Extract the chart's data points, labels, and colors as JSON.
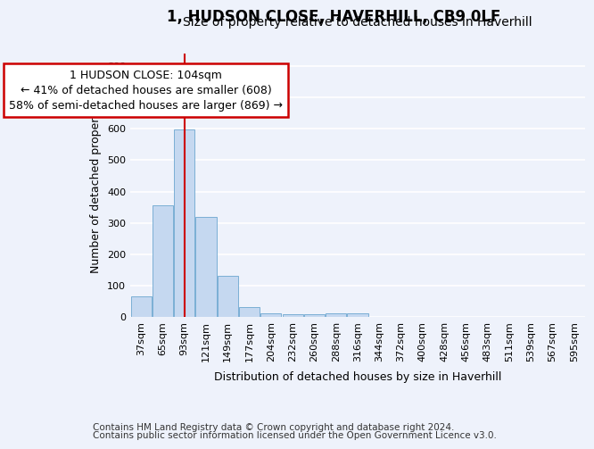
{
  "title": "1, HUDSON CLOSE, HAVERHILL, CB9 0LF",
  "subtitle": "Size of property relative to detached houses in Haverhill",
  "xlabel": "Distribution of detached houses by size in Haverhill",
  "ylabel": "Number of detached properties",
  "footer_line1": "Contains HM Land Registry data © Crown copyright and database right 2024.",
  "footer_line2": "Contains public sector information licensed under the Open Government Licence v3.0.",
  "bar_labels": [
    "37sqm",
    "65sqm",
    "93sqm",
    "121sqm",
    "149sqm",
    "177sqm",
    "204sqm",
    "232sqm",
    "260sqm",
    "288sqm",
    "316sqm",
    "344sqm",
    "372sqm",
    "400sqm",
    "428sqm",
    "456sqm",
    "483sqm",
    "511sqm",
    "539sqm",
    "567sqm",
    "595sqm"
  ],
  "bar_values": [
    65,
    357,
    597,
    318,
    130,
    30,
    10,
    8,
    8,
    10,
    10,
    0,
    0,
    0,
    0,
    0,
    0,
    0,
    0,
    0,
    0
  ],
  "bar_color": "#c5d8f0",
  "bar_edge_color": "#7bafd4",
  "property_line_x": 2.0,
  "annotation_line1": "1 HUDSON CLOSE: 104sqm",
  "annotation_line2": "← 41% of detached houses are smaller (608)",
  "annotation_line3": "58% of semi-detached houses are larger (869) →",
  "annotation_box_color": "white",
  "annotation_box_edge_color": "#cc0000",
  "vline_color": "#cc0000",
  "ylim": [
    0,
    840
  ],
  "yticks": [
    0,
    100,
    200,
    300,
    400,
    500,
    600,
    700,
    800
  ],
  "background_color": "#eef2fb",
  "grid_color": "white",
  "title_fontsize": 12,
  "subtitle_fontsize": 10,
  "axis_label_fontsize": 9,
  "tick_fontsize": 8,
  "annotation_fontsize": 9,
  "footer_fontsize": 7.5
}
